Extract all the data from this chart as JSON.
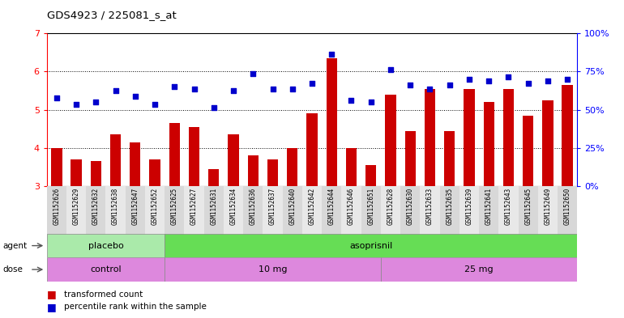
{
  "title": "GDS4923 / 225081_s_at",
  "samples": [
    "GSM1152626",
    "GSM1152629",
    "GSM1152632",
    "GSM1152638",
    "GSM1152647",
    "GSM1152652",
    "GSM1152625",
    "GSM1152627",
    "GSM1152631",
    "GSM1152634",
    "GSM1152636",
    "GSM1152637",
    "GSM1152640",
    "GSM1152642",
    "GSM1152644",
    "GSM1152646",
    "GSM1152651",
    "GSM1152628",
    "GSM1152630",
    "GSM1152633",
    "GSM1152635",
    "GSM1152639",
    "GSM1152641",
    "GSM1152643",
    "GSM1152645",
    "GSM1152649",
    "GSM1152650"
  ],
  "bar_values": [
    4.0,
    3.7,
    3.65,
    4.35,
    4.15,
    3.7,
    4.65,
    4.55,
    3.45,
    4.35,
    3.8,
    3.7,
    4.0,
    4.9,
    6.35,
    4.0,
    3.55,
    5.4,
    4.45,
    5.55,
    4.45,
    5.55,
    5.2,
    5.55,
    4.85,
    5.25,
    5.65
  ],
  "dot_values_left_scale": [
    5.3,
    5.15,
    5.2,
    5.5,
    5.35,
    5.15,
    5.6,
    5.55,
    5.05,
    5.5,
    5.95,
    5.55,
    5.55,
    5.7,
    6.45,
    5.25,
    5.2,
    6.05,
    5.65,
    5.55,
    5.65,
    5.8,
    5.75,
    5.85,
    5.7,
    5.75,
    5.8
  ],
  "ylim_left": [
    3,
    7
  ],
  "ylim_right": [
    0,
    100
  ],
  "yticks_left": [
    3,
    4,
    5,
    6,
    7
  ],
  "yticks_right": [
    0,
    25,
    50,
    75,
    100
  ],
  "bar_color": "#cc0000",
  "dot_color": "#0000cc",
  "agent_groups": [
    {
      "label": "placebo",
      "start": 0,
      "end": 6,
      "color": "#aaeaaa"
    },
    {
      "label": "asoprisnil",
      "start": 6,
      "end": 27,
      "color": "#55cc55"
    }
  ],
  "dose_groups": [
    {
      "label": "control",
      "start": 0,
      "end": 6
    },
    {
      "label": "10 mg",
      "start": 6,
      "end": 17
    },
    {
      "label": "25 mg",
      "start": 17,
      "end": 27
    }
  ],
  "dose_color": "#dd88dd",
  "legend_items": [
    {
      "label": "transformed count",
      "color": "#cc0000"
    },
    {
      "label": "percentile rank within the sample",
      "color": "#0000cc"
    }
  ],
  "bar_width": 0.55,
  "plot_bg_color": "#ffffff",
  "tick_bg_even": "#d8d8d8",
  "tick_bg_odd": "#e8e8e8"
}
